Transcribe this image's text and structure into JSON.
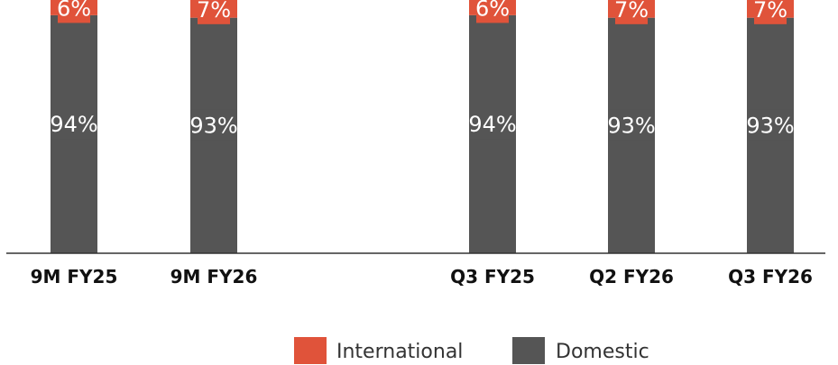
{
  "chart_data": {
    "type": "bar",
    "stacked": true,
    "percent": true,
    "categories": [
      "9M FY25",
      "9M FY26",
      "",
      "Q3 FY25",
      "Q2 FY26",
      "Q3 FY26"
    ],
    "series": [
      {
        "name": "Domestic",
        "color": "#555555",
        "values": [
          94,
          93,
          null,
          94,
          93,
          93
        ]
      },
      {
        "name": "International",
        "color": "#e0533a",
        "values": [
          6,
          7,
          null,
          6,
          7,
          7
        ]
      }
    ],
    "ylim": [
      0,
      100
    ],
    "legend": "bottom-center",
    "grid": false
  }
}
